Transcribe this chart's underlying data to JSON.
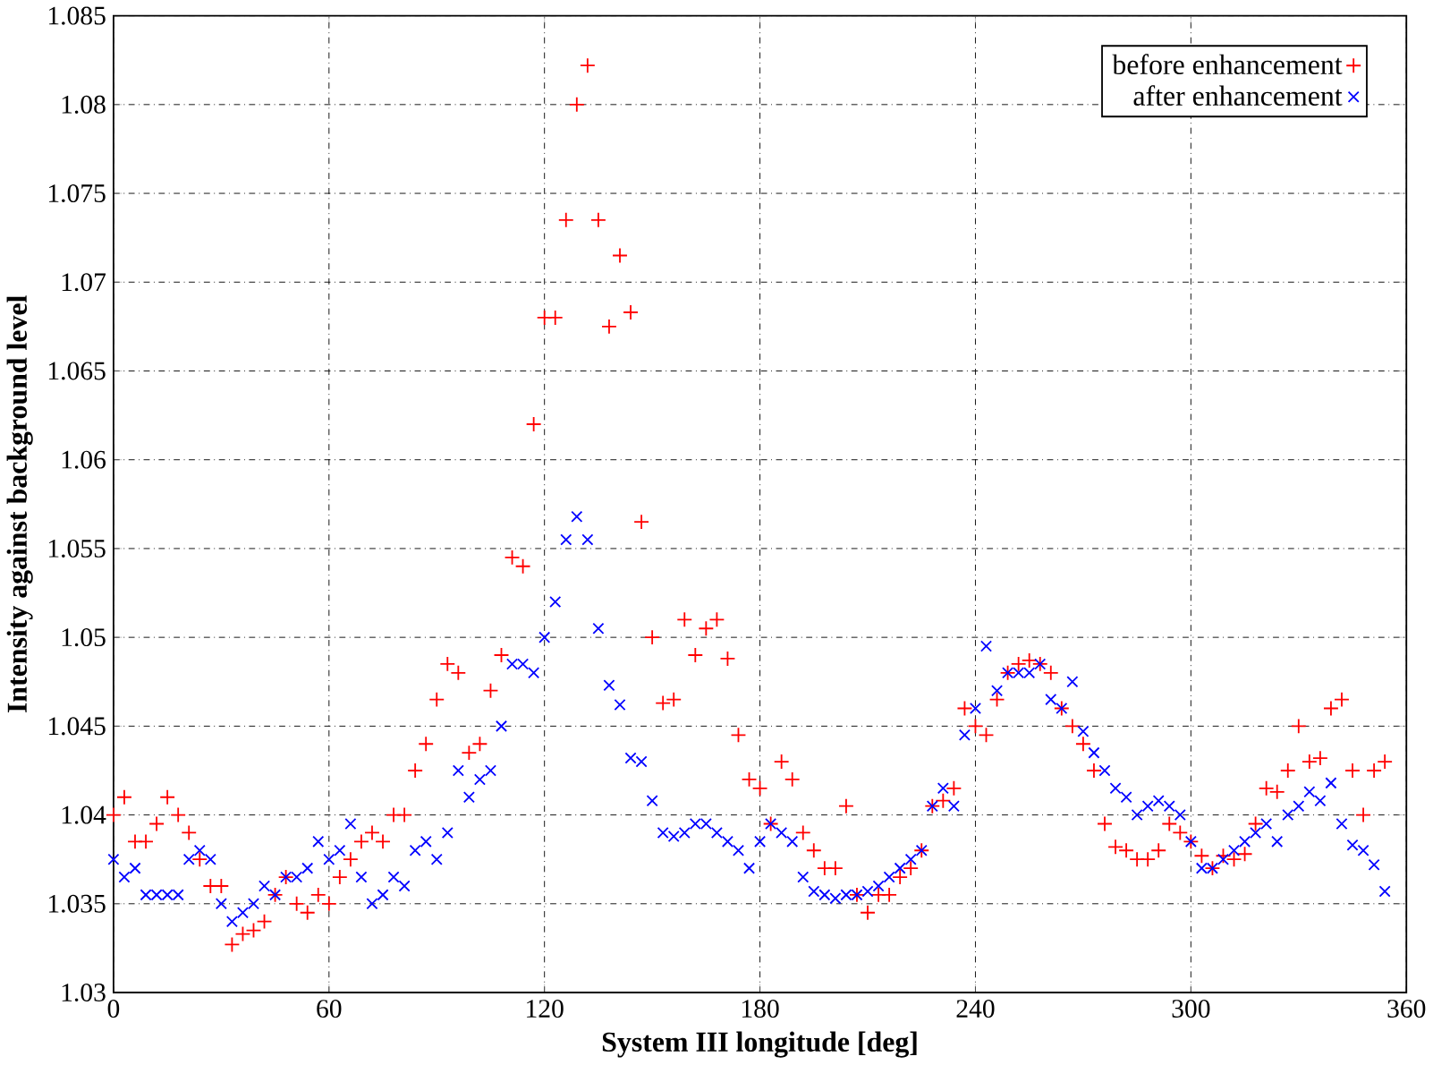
{
  "chart_data": {
    "type": "scatter",
    "xlabel": "System III longitude [deg]",
    "ylabel": "Intensity against background level",
    "x": [
      0,
      3,
      6,
      9,
      12,
      15,
      18,
      21,
      24,
      27,
      30,
      33,
      36,
      39,
      42,
      45,
      48,
      51,
      54,
      57,
      60,
      63,
      66,
      69,
      72,
      75,
      78,
      81,
      84,
      87,
      90,
      93,
      96,
      99,
      102,
      105,
      108,
      111,
      114,
      117,
      120,
      123,
      126,
      129,
      132,
      135,
      138,
      141,
      144,
      147,
      150,
      153,
      156,
      159,
      162,
      165,
      168,
      171,
      174,
      177,
      180,
      183,
      186,
      189,
      192,
      195,
      198,
      201,
      204,
      207,
      210,
      213,
      216,
      219,
      222,
      225,
      228,
      231,
      234,
      237,
      240,
      243,
      246,
      249,
      252,
      255,
      258,
      261,
      264,
      267,
      270,
      273,
      276,
      279,
      282,
      285,
      288,
      291,
      294,
      297,
      300,
      303,
      306,
      309,
      312,
      315,
      318,
      321,
      324,
      327,
      330,
      333,
      336,
      339,
      342,
      345,
      348,
      351,
      354
    ],
    "series": [
      {
        "name": "before enhancement",
        "color": "#ff0000",
        "marker": "plus",
        "values": [
          1.04,
          1.041,
          1.0385,
          1.0385,
          1.0395,
          1.041,
          1.04,
          1.039,
          1.0375,
          1.036,
          1.036,
          1.0327,
          1.0333,
          1.0335,
          1.034,
          1.0355,
          1.0365,
          1.035,
          1.0345,
          1.0355,
          1.035,
          1.0365,
          1.0375,
          1.0385,
          1.039,
          1.0385,
          1.04,
          1.04,
          1.0425,
          1.044,
          1.0465,
          1.0485,
          1.048,
          1.0435,
          1.044,
          1.047,
          1.049,
          1.0545,
          1.054,
          1.062,
          1.068,
          1.068,
          1.0735,
          1.08,
          1.0822,
          1.0735,
          1.0675,
          1.0715,
          1.0683,
          1.0565,
          1.05,
          1.0463,
          1.0465,
          1.051,
          1.049,
          1.0505,
          1.051,
          1.0488,
          1.0445,
          1.042,
          1.0415,
          1.0395,
          1.043,
          1.042,
          1.039,
          1.038,
          1.037,
          1.037,
          1.0405,
          1.0355,
          1.0345,
          1.0355,
          1.0355,
          1.0365,
          1.037,
          1.038,
          1.0405,
          1.0408,
          1.0415,
          1.046,
          1.045,
          1.0445,
          1.0465,
          1.048,
          1.0485,
          1.0487,
          1.0485,
          1.048,
          1.046,
          1.045,
          1.044,
          1.0425,
          1.0395,
          1.0382,
          1.038,
          1.0375,
          1.0375,
          1.038,
          1.0395,
          1.039,
          1.0385,
          1.0377,
          1.037,
          1.0377,
          1.0375,
          1.0378,
          1.0395,
          1.0415,
          1.0413,
          1.0425,
          1.045,
          1.043,
          1.0432,
          1.046,
          1.0465,
          1.0425,
          1.04,
          1.0425,
          1.043
        ]
      },
      {
        "name": "after enhancement",
        "color": "#0000ff",
        "marker": "cross",
        "values": [
          1.0375,
          1.0365,
          1.037,
          1.0355,
          1.0355,
          1.0355,
          1.0355,
          1.0375,
          1.038,
          1.0375,
          1.035,
          1.034,
          1.0345,
          1.035,
          1.036,
          1.0355,
          1.0365,
          1.0365,
          1.037,
          1.0385,
          1.0375,
          1.038,
          1.0395,
          1.0365,
          1.035,
          1.0355,
          1.0365,
          1.036,
          1.038,
          1.0385,
          1.0375,
          1.039,
          1.0425,
          1.041,
          1.042,
          1.0425,
          1.045,
          1.0485,
          1.0485,
          1.048,
          1.05,
          1.052,
          1.0555,
          1.0568,
          1.0555,
          1.0505,
          1.0473,
          1.0462,
          1.0432,
          1.043,
          1.0408,
          1.039,
          1.0388,
          1.039,
          1.0395,
          1.0395,
          1.039,
          1.0385,
          1.038,
          1.037,
          1.0385,
          1.0395,
          1.039,
          1.0385,
          1.0365,
          1.0357,
          1.0355,
          1.0353,
          1.0355,
          1.0355,
          1.0357,
          1.036,
          1.0365,
          1.037,
          1.0375,
          1.038,
          1.0405,
          1.0415,
          1.0405,
          1.0445,
          1.046,
          1.0495,
          1.047,
          1.048,
          1.048,
          1.048,
          1.0485,
          1.0465,
          1.046,
          1.0475,
          1.0447,
          1.0435,
          1.0425,
          1.0415,
          1.041,
          1.04,
          1.0405,
          1.0408,
          1.0405,
          1.04,
          1.0385,
          1.037,
          1.037,
          1.0375,
          1.038,
          1.0385,
          1.039,
          1.0395,
          1.0385,
          1.04,
          1.0405,
          1.0413,
          1.0408,
          1.0418,
          1.0395,
          1.0383,
          1.038,
          1.0372,
          1.0357
        ]
      }
    ],
    "xlim": [
      0,
      360
    ],
    "xticks": [
      0,
      60,
      120,
      180,
      240,
      300,
      360
    ],
    "ylim": [
      1.03,
      1.085
    ],
    "yticks": [
      1.03,
      1.035,
      1.04,
      1.045,
      1.05,
      1.055,
      1.06,
      1.065,
      1.07,
      1.075,
      1.08,
      1.085
    ],
    "grid": true,
    "legend": "top right"
  }
}
